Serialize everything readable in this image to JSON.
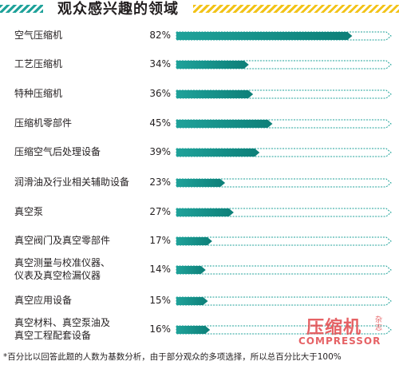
{
  "header": {
    "title": "观众感兴趣的领域"
  },
  "chart_data": {
    "type": "bar",
    "orientation": "horizontal",
    "categories": [
      "空气压缩机",
      "工艺压缩机",
      "特种压缩机",
      "压缩机零部件",
      "压缩空气后处理设备",
      "润滑油及行业相关辅助设备",
      "真空泵",
      "真空阀门及真空零部件",
      "真空测量与校准仪器、\n仪表及真空检漏仪器",
      "真空应用设备",
      "真空材料、真空泵油及\n真空工程配套设备"
    ],
    "values": [
      82,
      34,
      36,
      45,
      39,
      23,
      27,
      17,
      14,
      15,
      16
    ],
    "value_labels": [
      "82%",
      "34%",
      "36%",
      "45%",
      "39%",
      "23%",
      "27%",
      "17%",
      "14%",
      "15%",
      "16%"
    ],
    "unit": "%",
    "xlim": [
      0,
      100
    ],
    "bar_fill": "#1fa29a",
    "bar_fill_dark": "#0d7f78",
    "bar_outline": "#1fa29a",
    "grid": false,
    "legend": "none"
  },
  "footnote": "*百分比以回答此题的人数为基数分析，由于部分观众的多项选择，所以总百分比大于100%",
  "watermark": {
    "cn": "压缩机",
    "side": "杂志",
    "en": "COMPRESSOR"
  },
  "colors": {
    "accent_teal": "#1fa29a",
    "accent_yellow": "#f2c318",
    "watermark_red": "#e2474b"
  }
}
